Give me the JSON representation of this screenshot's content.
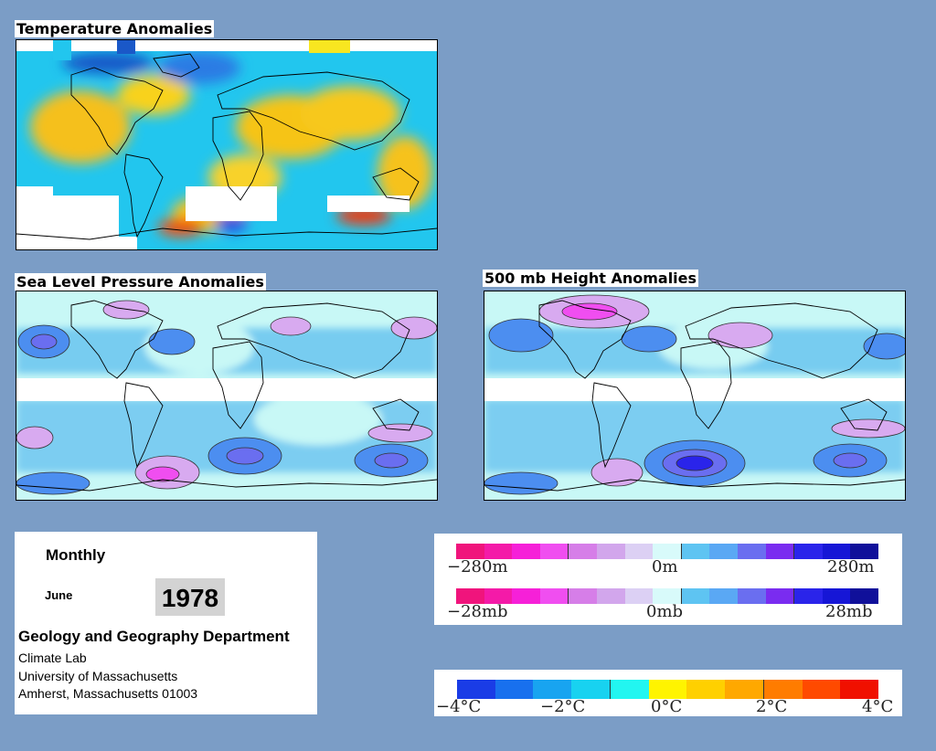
{
  "panels": {
    "temperature": {
      "title": "Temperature Anomalies"
    },
    "slp": {
      "title": "Sea Level Pressure Anomalies"
    },
    "height500": {
      "title": "500 mb Height Anomalies"
    }
  },
  "legends": {
    "height": {
      "colors": [
        "#f0147c",
        "#f41aa8",
        "#f620d8",
        "#f04ef0",
        "#d67ee8",
        "#d2a6ec",
        "#dcd0f4",
        "#d8fafa",
        "#5ec4f2",
        "#5aa8f4",
        "#6a6ef0",
        "#7a2cf0",
        "#2a24ea",
        "#1616d6",
        "#10109a"
      ],
      "labels": {
        "min": "−280m",
        "mid": "0m",
        "max": "280m"
      }
    },
    "pressure": {
      "colors": [
        "#f0147c",
        "#f41aa8",
        "#f620d8",
        "#f04ef0",
        "#d67ee8",
        "#d2a6ec",
        "#dcd0f4",
        "#d8fafa",
        "#5ec4f2",
        "#5aa8f4",
        "#6a6ef0",
        "#7a2cf0",
        "#2a24ea",
        "#1616d6",
        "#10109a"
      ],
      "labels": {
        "min": "−28mb",
        "mid": "0mb",
        "max": "28mb"
      }
    },
    "temperature": {
      "colors": [
        "#1a3ce6",
        "#1870ee",
        "#18a4f0",
        "#18d2f0",
        "#22f6f0",
        "#fff400",
        "#ffd000",
        "#ffa800",
        "#ff7c00",
        "#ff4a00",
        "#f01000"
      ],
      "labels": {
        "t1": "−4°C",
        "t2": "−2°C",
        "t3": "0°C",
        "t4": "2°C",
        "t5": "4°C"
      }
    }
  },
  "info": {
    "frequency": "Monthly",
    "month": "June",
    "year": "1978",
    "department": "Geology and Geography Department",
    "lab": "Climate Lab",
    "university": "University of Massachusetts",
    "address": "Amherst, Massachusetts 01003"
  },
  "colors": {
    "background": "#7b9dc6",
    "ocean_light": "#c8f8f6",
    "positive_anomaly": "#d8aaf0",
    "negative_anomaly": "#5ab8ee",
    "warm": "#f5c418",
    "cool": "#22c4ee"
  }
}
